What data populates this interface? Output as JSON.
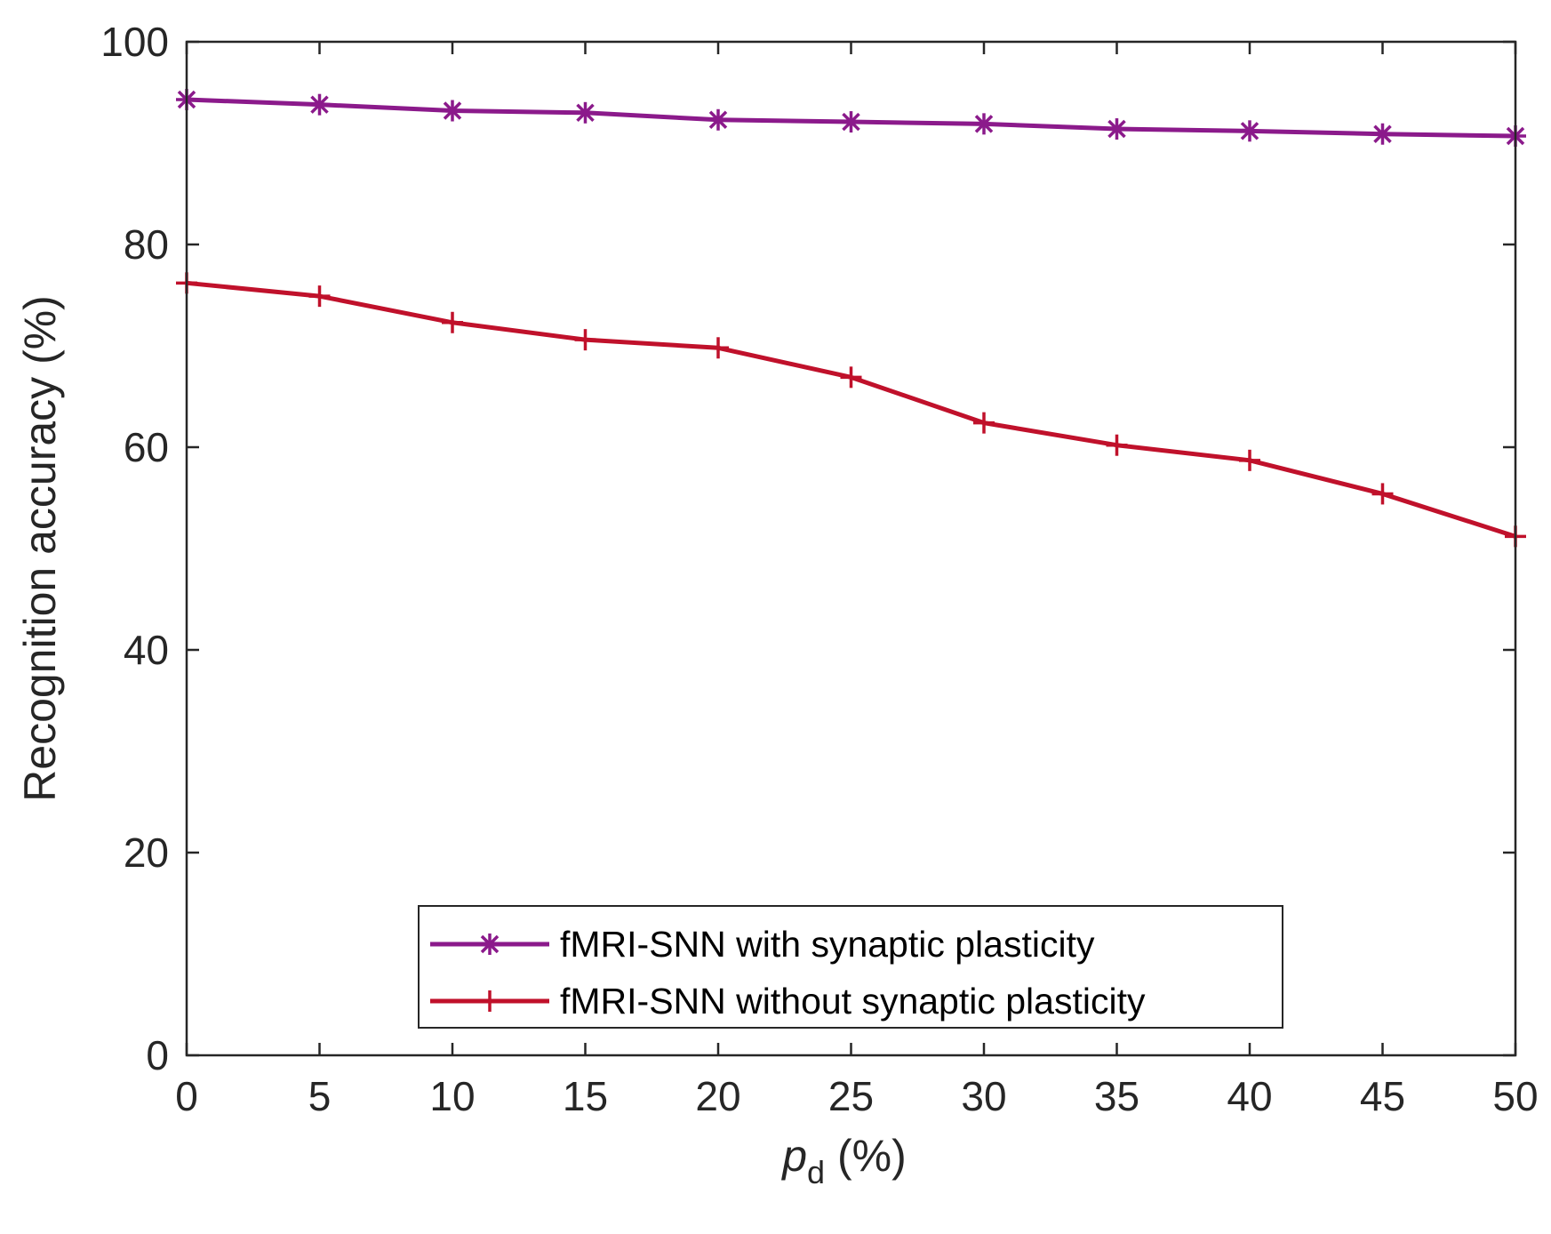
{
  "chart_data": {
    "type": "line",
    "x": [
      0,
      5,
      10,
      15,
      20,
      25,
      30,
      35,
      40,
      45,
      50
    ],
    "series": [
      {
        "name": "fMRI-SNN with synaptic plasticity",
        "marker": "asterisk",
        "color": "#8B1A8B",
        "values": [
          94.3,
          93.8,
          93.2,
          93.0,
          92.3,
          92.1,
          91.9,
          91.4,
          91.2,
          90.9,
          90.7
        ]
      },
      {
        "name": "fMRI-SNN without synaptic plasticity",
        "marker": "plus",
        "color": "#C0112B",
        "values": [
          76.2,
          74.9,
          72.3,
          70.6,
          69.8,
          66.9,
          62.4,
          60.2,
          58.7,
          55.4,
          51.2
        ]
      }
    ],
    "xlim": [
      0,
      50
    ],
    "ylim": [
      0,
      100
    ],
    "xticks": [
      0,
      5,
      10,
      15,
      20,
      25,
      30,
      35,
      40,
      45,
      50
    ],
    "yticks": [
      0,
      20,
      40,
      60,
      80,
      100
    ],
    "xlabel_main": "p",
    "xlabel_sub": "d",
    "xlabel_unit": "(%)",
    "ylabel": "Recognition accuracy (%)",
    "legend_position": "bottom-center",
    "grid": false
  }
}
